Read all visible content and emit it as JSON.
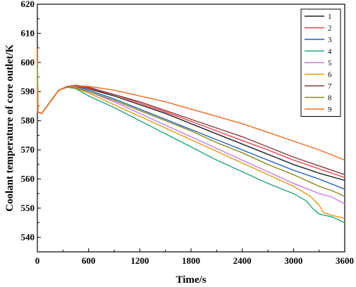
{
  "chart_data": {
    "type": "line",
    "title": "",
    "xlabel": "Time/s",
    "ylabel": "Coolant temperature of core outlet/K",
    "xlim": [
      0,
      3600
    ],
    "ylim": [
      535,
      620
    ],
    "x_ticks": [
      0,
      600,
      1200,
      1800,
      2400,
      3000,
      3600
    ],
    "y_ticks": [
      540,
      550,
      560,
      570,
      580,
      590,
      600,
      610,
      620
    ],
    "legend_position": "top-right",
    "grid": false,
    "series": [
      {
        "name": "1",
        "color": "#222222",
        "points": [
          [
            0,
            605
          ],
          [
            5,
            583
          ],
          [
            50,
            582.5
          ],
          [
            150,
            586.5
          ],
          [
            250,
            590.5
          ],
          [
            350,
            591.8
          ],
          [
            450,
            592.0
          ],
          [
            600,
            591.0
          ],
          [
            900,
            588.5
          ],
          [
            1200,
            585.5
          ],
          [
            1500,
            582.5
          ],
          [
            1800,
            579.0
          ],
          [
            2100,
            575.5
          ],
          [
            2400,
            572.0
          ],
          [
            2700,
            568.5
          ],
          [
            3000,
            565.0
          ],
          [
            3300,
            562.0
          ],
          [
            3600,
            559.5
          ]
        ]
      },
      {
        "name": "2",
        "color": "#e8414f",
        "points": [
          [
            0,
            605
          ],
          [
            5,
            583
          ],
          [
            50,
            582.5
          ],
          [
            150,
            586.5
          ],
          [
            250,
            590.5
          ],
          [
            350,
            591.8
          ],
          [
            450,
            592.0
          ],
          [
            600,
            591.2
          ],
          [
            900,
            589.0
          ],
          [
            1200,
            586.0
          ],
          [
            1500,
            583.0
          ],
          [
            1800,
            579.8
          ],
          [
            2100,
            576.5
          ],
          [
            2400,
            573.2
          ],
          [
            2700,
            570.0
          ],
          [
            3000,
            566.5
          ],
          [
            3300,
            563.5
          ],
          [
            3600,
            560.5
          ]
        ]
      },
      {
        "name": "3",
        "color": "#1f5fbf",
        "points": [
          [
            0,
            605
          ],
          [
            5,
            583
          ],
          [
            50,
            582.5
          ],
          [
            150,
            586.5
          ],
          [
            250,
            590.5
          ],
          [
            350,
            591.8
          ],
          [
            450,
            591.8
          ],
          [
            600,
            590.5
          ],
          [
            900,
            587.5
          ],
          [
            1200,
            584.0
          ],
          [
            1500,
            580.5
          ],
          [
            1800,
            577.0
          ],
          [
            2100,
            573.5
          ],
          [
            2400,
            570.0
          ],
          [
            2700,
            566.5
          ],
          [
            3000,
            563.0
          ],
          [
            3300,
            560.0
          ],
          [
            3600,
            556.5
          ]
        ]
      },
      {
        "name": "4",
        "color": "#22a67a",
        "points": [
          [
            0,
            605
          ],
          [
            5,
            583
          ],
          [
            50,
            582.5
          ],
          [
            150,
            586.5
          ],
          [
            250,
            590.5
          ],
          [
            350,
            591.5
          ],
          [
            450,
            591.0
          ],
          [
            600,
            588.5
          ],
          [
            900,
            584.5
          ],
          [
            1200,
            580.0
          ],
          [
            1500,
            575.5
          ],
          [
            1800,
            571.0
          ],
          [
            2100,
            566.5
          ],
          [
            2400,
            562.5
          ],
          [
            2700,
            558.5
          ],
          [
            3000,
            555.0
          ],
          [
            3150,
            552.5
          ],
          [
            3220,
            550.0
          ],
          [
            3300,
            548.0
          ],
          [
            3450,
            547.0
          ],
          [
            3600,
            545.0
          ]
        ]
      },
      {
        "name": "5",
        "color": "#c77cf2",
        "points": [
          [
            0,
            605
          ],
          [
            5,
            583
          ],
          [
            50,
            582.5
          ],
          [
            150,
            586.5
          ],
          [
            250,
            590.5
          ],
          [
            350,
            591.8
          ],
          [
            450,
            591.5
          ],
          [
            600,
            590.0
          ],
          [
            900,
            586.5
          ],
          [
            1200,
            582.5
          ],
          [
            1500,
            578.5
          ],
          [
            1800,
            574.5
          ],
          [
            2100,
            570.5
          ],
          [
            2400,
            566.5
          ],
          [
            2700,
            562.5
          ],
          [
            3000,
            558.5
          ],
          [
            3300,
            555.0
          ],
          [
            3450,
            553.8
          ],
          [
            3600,
            551.5
          ]
        ]
      },
      {
        "name": "6",
        "color": "#e09b0d",
        "points": [
          [
            0,
            605
          ],
          [
            5,
            583
          ],
          [
            50,
            582.5
          ],
          [
            150,
            586.5
          ],
          [
            250,
            590.5
          ],
          [
            350,
            591.5
          ],
          [
            450,
            591.2
          ],
          [
            600,
            589.5
          ],
          [
            900,
            585.5
          ],
          [
            1200,
            581.5
          ],
          [
            1500,
            577.5
          ],
          [
            1800,
            573.5
          ],
          [
            2100,
            569.5
          ],
          [
            2400,
            565.5
          ],
          [
            2700,
            561.5
          ],
          [
            3000,
            557.5
          ],
          [
            3200,
            554.0
          ],
          [
            3300,
            551.0
          ],
          [
            3350,
            548.5
          ],
          [
            3450,
            547.5
          ],
          [
            3600,
            546.5
          ]
        ]
      },
      {
        "name": "7",
        "color": "#8b3a3a",
        "points": [
          [
            0,
            605
          ],
          [
            5,
            583
          ],
          [
            50,
            582.5
          ],
          [
            150,
            586.5
          ],
          [
            250,
            590.5
          ],
          [
            350,
            591.8
          ],
          [
            450,
            592.2
          ],
          [
            600,
            591.5
          ],
          [
            900,
            589.0
          ],
          [
            1200,
            586.5
          ],
          [
            1500,
            583.5
          ],
          [
            1800,
            580.5
          ],
          [
            2100,
            577.5
          ],
          [
            2400,
            574.5
          ],
          [
            2700,
            571.0
          ],
          [
            3000,
            567.5
          ],
          [
            3300,
            564.5
          ],
          [
            3600,
            561.5
          ]
        ]
      },
      {
        "name": "8",
        "color": "#8a8a1c",
        "points": [
          [
            0,
            605
          ],
          [
            5,
            583
          ],
          [
            50,
            582.5
          ],
          [
            150,
            586.5
          ],
          [
            250,
            590.5
          ],
          [
            350,
            591.5
          ],
          [
            450,
            591.3
          ],
          [
            600,
            590.0
          ],
          [
            900,
            587.0
          ],
          [
            1200,
            583.5
          ],
          [
            1500,
            580.0
          ],
          [
            1800,
            576.5
          ],
          [
            2100,
            572.5
          ],
          [
            2400,
            569.0
          ],
          [
            2700,
            565.0
          ],
          [
            3000,
            561.5
          ],
          [
            3300,
            557.5
          ],
          [
            3450,
            556.0
          ],
          [
            3600,
            554.0
          ]
        ]
      },
      {
        "name": "9",
        "color": "#f26b1d",
        "points": [
          [
            0,
            605
          ],
          [
            5,
            583
          ],
          [
            50,
            582.5
          ],
          [
            150,
            586.5
          ],
          [
            250,
            590.5
          ],
          [
            350,
            591.8
          ],
          [
            450,
            592.0
          ],
          [
            600,
            591.8
          ],
          [
            900,
            590.5
          ],
          [
            1200,
            588.5
          ],
          [
            1500,
            586.5
          ],
          [
            1800,
            584.0
          ],
          [
            2100,
            581.5
          ],
          [
            2400,
            579.0
          ],
          [
            2700,
            576.0
          ],
          [
            3000,
            573.0
          ],
          [
            3300,
            570.0
          ],
          [
            3600,
            566.5
          ]
        ]
      }
    ]
  }
}
